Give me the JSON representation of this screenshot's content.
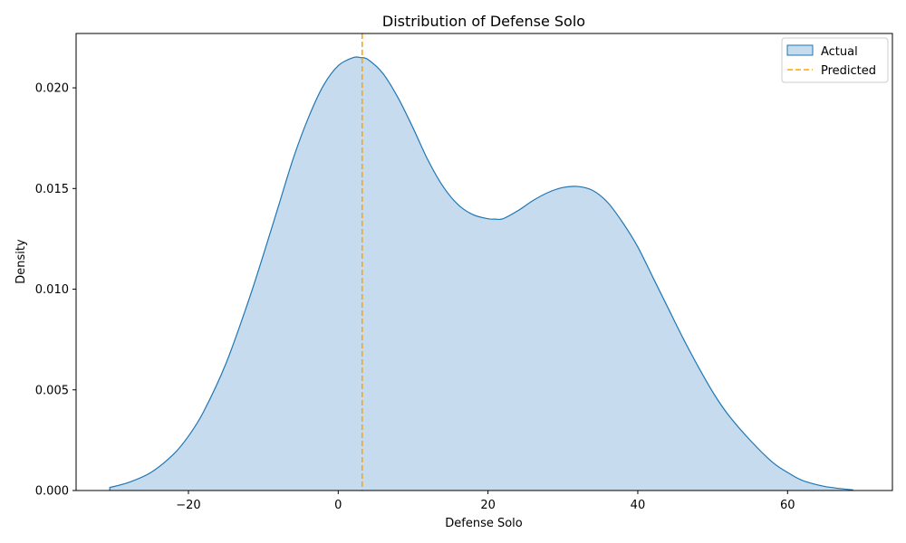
{
  "chart_data": {
    "type": "area",
    "title": "Distribution of Defense Solo",
    "xlabel": "Defense Solo",
    "ylabel": "Density",
    "xlim": [
      -35,
      74
    ],
    "ylim": [
      0,
      0.0227
    ],
    "xticks": [
      -20,
      0,
      20,
      40,
      60
    ],
    "xtick_labels": [
      "−20",
      "0",
      "20",
      "40",
      "60"
    ],
    "yticks": [
      0,
      0.005,
      0.01,
      0.015,
      0.02
    ],
    "ytick_labels": [
      "0.000",
      "0.005",
      "0.010",
      "0.015",
      "0.020"
    ],
    "grid": false,
    "legend": {
      "placement": "top-right",
      "entries": [
        "Actual",
        "Predicted"
      ]
    },
    "series": [
      {
        "name": "Actual",
        "kind": "density",
        "color": "#1f77b4",
        "fill": "#c6dbed",
        "x": [
          -30.5,
          -28,
          -25,
          -22,
          -20,
          -18,
          -15,
          -12,
          -10,
          -8,
          -6,
          -4,
          -2,
          0,
          2,
          3,
          4,
          6,
          8,
          10,
          12,
          14,
          16,
          18,
          20,
          21,
          22,
          24,
          26,
          28,
          30,
          32,
          34,
          36,
          38,
          40,
          42,
          44,
          46,
          48,
          50,
          52,
          55,
          58,
          60,
          62,
          65,
          68.7
        ],
        "y": [
          0.00015,
          0.0004,
          0.0009,
          0.0018,
          0.0027,
          0.0039,
          0.0063,
          0.0094,
          0.0117,
          0.0141,
          0.0165,
          0.0185,
          0.0201,
          0.0211,
          0.0215,
          0.0215,
          0.0214,
          0.0207,
          0.0195,
          0.018,
          0.0164,
          0.0151,
          0.0142,
          0.0137,
          0.0135,
          0.01348,
          0.0135,
          0.0139,
          0.0144,
          0.0148,
          0.01505,
          0.0151,
          0.0149,
          0.0143,
          0.0133,
          0.0121,
          0.0106,
          0.0091,
          0.0076,
          0.0062,
          0.0049,
          0.0038,
          0.0025,
          0.0014,
          0.0009,
          0.0005,
          0.0002,
          3e-05
        ]
      },
      {
        "name": "Predicted",
        "kind": "vline",
        "color": "#ffa500",
        "x": 3.2
      }
    ]
  }
}
